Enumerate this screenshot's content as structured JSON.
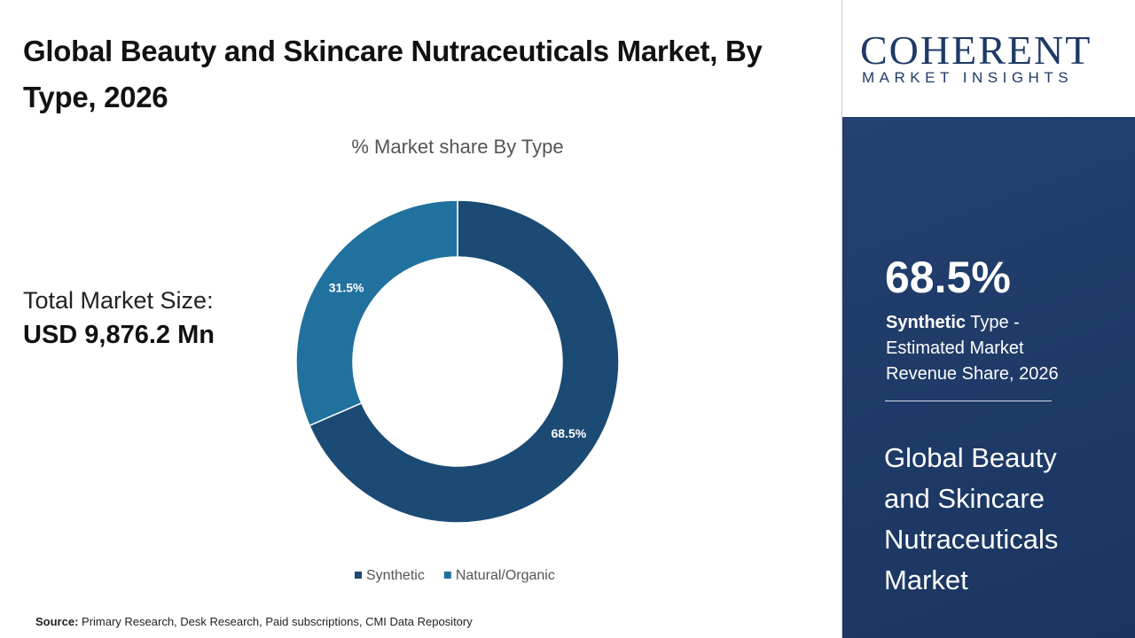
{
  "header": {
    "title": "Global Beauty and Skincare Nutraceuticals Market, By Type, 2026"
  },
  "market_size": {
    "label": "Total Market Size:",
    "value": "USD 9,876.2 Mn"
  },
  "chart_data": {
    "type": "donut",
    "title": "% Market share By Type",
    "categories": [
      "Synthetic",
      "Natural/Organic"
    ],
    "values": [
      68.5,
      31.5
    ],
    "value_labels": [
      "68.5%",
      "31.5%"
    ],
    "colors": [
      "#1b4a74",
      "#20719e"
    ],
    "legend": "bottom"
  },
  "source": {
    "label": "Source:",
    "text": "Primary Research, Desk Research, Paid subscriptions, CMI Data Repository"
  },
  "logo": {
    "name": "COHERENT",
    "tagline": "MARKET INSIGHTS"
  },
  "sidebar": {
    "highlight": "68.5%",
    "segment": "Synthetic",
    "description": " Type - Estimated Market Revenue Share, 2026",
    "market_name": "Global Beauty and Skincare Nutraceuticals Market"
  }
}
